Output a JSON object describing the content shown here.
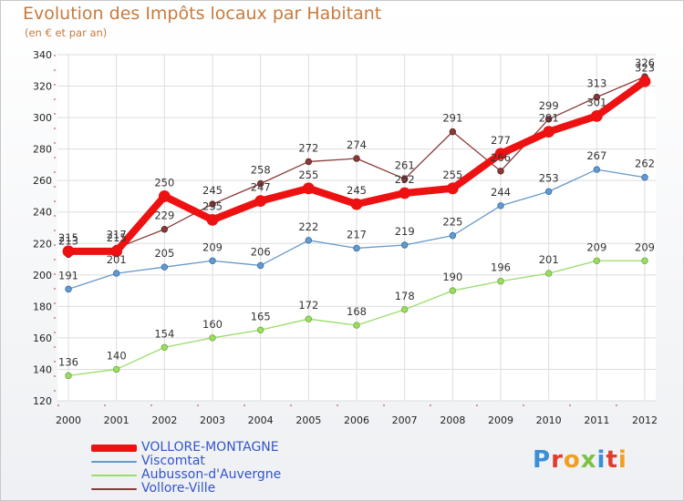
{
  "title": "Evolution des Impôts locaux par Habitant",
  "subtitle": "(en € et par an)",
  "logo_text": "Proxiti",
  "chart_data": {
    "type": "line",
    "title": "Evolution des Impôts locaux par Habitant",
    "subtitle": "(en € et par an)",
    "xlabel": "",
    "ylabel": "",
    "categories": [
      "2000",
      "2001",
      "2002",
      "2003",
      "2004",
      "2005",
      "2006",
      "2007",
      "2008",
      "2009",
      "2010",
      "2011",
      "2012"
    ],
    "ylim": [
      120,
      340
    ],
    "yticks": [
      120,
      140,
      160,
      180,
      200,
      220,
      240,
      260,
      280,
      300,
      320,
      340
    ],
    "grid": true,
    "legend_position": "bottom-left",
    "series": [
      {
        "name": "VOLLORE-MONTAGNE",
        "color": "#ee1111",
        "values": [
          215,
          215,
          250,
          235,
          247,
          255,
          245,
          252,
          255,
          277,
          291,
          301,
          323
        ]
      },
      {
        "name": "Viscomtat",
        "color": "#6699cc",
        "values": [
          191,
          201,
          205,
          209,
          206,
          222,
          217,
          219,
          225,
          244,
          253,
          267,
          262
        ]
      },
      {
        "name": "Aubusson-d'Auvergne",
        "color": "#99dd66",
        "values": [
          136,
          140,
          154,
          160,
          165,
          172,
          168,
          178,
          190,
          196,
          201,
          209,
          209
        ]
      },
      {
        "name": "Vollore-Ville",
        "color": "#8b3a3a",
        "values": [
          213,
          217,
          229,
          245,
          258,
          272,
          274,
          261,
          291,
          266,
          299,
          313,
          326
        ]
      }
    ]
  }
}
